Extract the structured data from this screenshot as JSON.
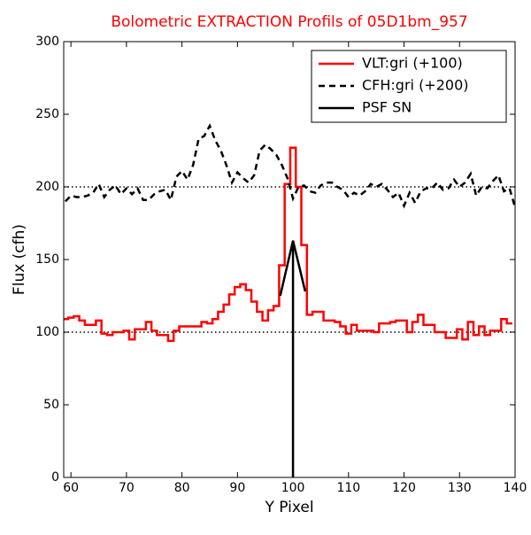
{
  "chart_data": {
    "type": "line",
    "title": "Bolometric EXTRACTION Profils of 05D1bm_957",
    "title_color": "#ff0000",
    "xlabel": "Y Pixel",
    "ylabel": "Flux (cfh)",
    "xlim": [
      58.7,
      140
    ],
    "ylim": [
      0,
      300
    ],
    "xticks": [
      60,
      70,
      80,
      90,
      100,
      110,
      120,
      130,
      140
    ],
    "yticks": [
      0,
      50,
      100,
      150,
      200,
      250,
      300
    ],
    "hlines": [
      100,
      200
    ],
    "legend": "upper right",
    "series": [
      {
        "name": "VLT:gri (+100)",
        "color": "#ff0000",
        "style": "steps-mid",
        "x": [
          59,
          60,
          61,
          62,
          63,
          64,
          65,
          66,
          67,
          68,
          69,
          70,
          71,
          72,
          73,
          74,
          75,
          76,
          77,
          78,
          79,
          80,
          81,
          82,
          83,
          84,
          85,
          86,
          87,
          88,
          89,
          90,
          91,
          92,
          93,
          94,
          95,
          96,
          97,
          98,
          99,
          100,
          101,
          102,
          103,
          104,
          105,
          106,
          107,
          108,
          109,
          110,
          111,
          112,
          113,
          114,
          115,
          116,
          117,
          118,
          119,
          120,
          121,
          122,
          123,
          124,
          125,
          126,
          127,
          128,
          129,
          130,
          131,
          132,
          133,
          134,
          135,
          136,
          137,
          138,
          139
        ],
        "values": [
          109,
          110,
          111,
          108,
          105,
          105,
          108,
          99,
          98,
          100,
          100,
          101,
          95,
          102,
          102,
          107,
          101,
          98,
          98,
          94,
          101,
          104,
          104,
          104,
          104,
          107,
          106,
          109,
          114,
          119,
          126,
          131,
          133,
          129,
          121,
          114,
          108,
          115,
          118,
          146,
          202,
          227,
          200,
          160,
          112,
          114,
          114,
          108,
          108,
          107,
          104,
          99,
          105,
          101,
          101,
          101,
          100,
          106,
          106,
          107,
          108,
          108,
          100,
          107,
          112,
          105,
          105,
          100,
          100,
          96,
          96,
          102,
          95,
          107,
          98,
          104,
          98,
          101,
          101,
          109,
          106
        ]
      },
      {
        "name": "CFH:gri (+200)",
        "color": "#000000",
        "style": "dashed",
        "x": [
          59,
          60,
          61,
          62,
          63,
          64,
          65,
          66,
          67,
          68,
          69,
          70,
          71,
          72,
          73,
          74,
          75,
          76,
          77,
          78,
          79,
          80,
          81,
          82,
          83,
          84,
          85,
          86,
          87,
          88,
          89,
          90,
          91,
          92,
          93,
          94,
          95,
          96,
          97,
          98,
          99,
          100,
          101,
          102,
          103,
          104,
          105,
          106,
          107,
          108,
          109,
          110,
          111,
          112,
          113,
          114,
          115,
          116,
          117,
          118,
          119,
          120,
          121,
          122,
          123,
          124,
          125,
          126,
          127,
          128,
          129,
          130,
          131,
          132,
          133,
          134,
          135,
          136,
          137,
          138,
          139,
          140
        ],
        "values": [
          190,
          194,
          193,
          193,
          194,
          196,
          202,
          193,
          198,
          201,
          195,
          199,
          195,
          199,
          191,
          191,
          195,
          197,
          198,
          191,
          207,
          211,
          205,
          215,
          233,
          235,
          242,
          232,
          225,
          215,
          203,
          210,
          206,
          203,
          208,
          225,
          229,
          226,
          222,
          215,
          206,
          192,
          200,
          201,
          197,
          196,
          201,
          203,
          203,
          200,
          198,
          193,
          196,
          194,
          197,
          202,
          200,
          202,
          198,
          193,
          196,
          187,
          196,
          189,
          197,
          199,
          199,
          203,
          198,
          199,
          205,
          200,
          203,
          209,
          194,
          200,
          199,
          204,
          208,
          197,
          199,
          186
        ]
      },
      {
        "name": "PSF SN",
        "color": "#000000",
        "style": "solid",
        "x": [
          100,
          100,
          97.7,
          100,
          102.2
        ],
        "values": [
          0,
          163,
          125,
          163,
          128
        ]
      }
    ]
  }
}
